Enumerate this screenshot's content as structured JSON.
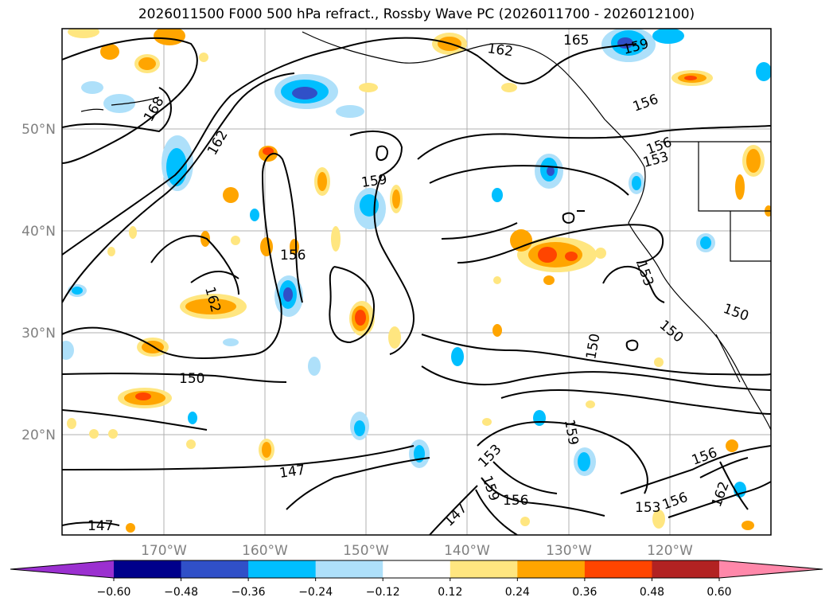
{
  "title": "2026011500 F000 500 hPa refract., Rossby Wave PC (2026011700 - 2026012100)",
  "lat_labels": [
    "50°N",
    "40°N",
    "30°N",
    "20°N"
  ],
  "lon_labels": [
    "170°W",
    "160°W",
    "150°W",
    "140°W",
    "130°W",
    "120°W"
  ],
  "contour_labels": [
    "165",
    "162",
    "159",
    "168",
    "162",
    "156",
    "159",
    "156",
    "153",
    "156",
    "162",
    "153",
    "150",
    "150",
    "150",
    "150",
    "159",
    "153",
    "156",
    "156",
    "159",
    "162",
    "153",
    "156",
    "147",
    "147",
    "147"
  ],
  "colorbar": {
    "ticks": [
      "−0.60",
      "−0.48",
      "−0.36",
      "−0.24",
      "−0.12",
      "0.12",
      "0.24",
      "0.36",
      "0.48",
      "0.60"
    ],
    "colors": [
      "#9b30d0",
      "#00008b",
      "#3050c8",
      "#00bfff",
      "#aee0fa",
      "#ffffff",
      "#ffe680",
      "#ffa500",
      "#ff4500",
      "#b22222",
      "#ff88aa"
    ]
  }
}
